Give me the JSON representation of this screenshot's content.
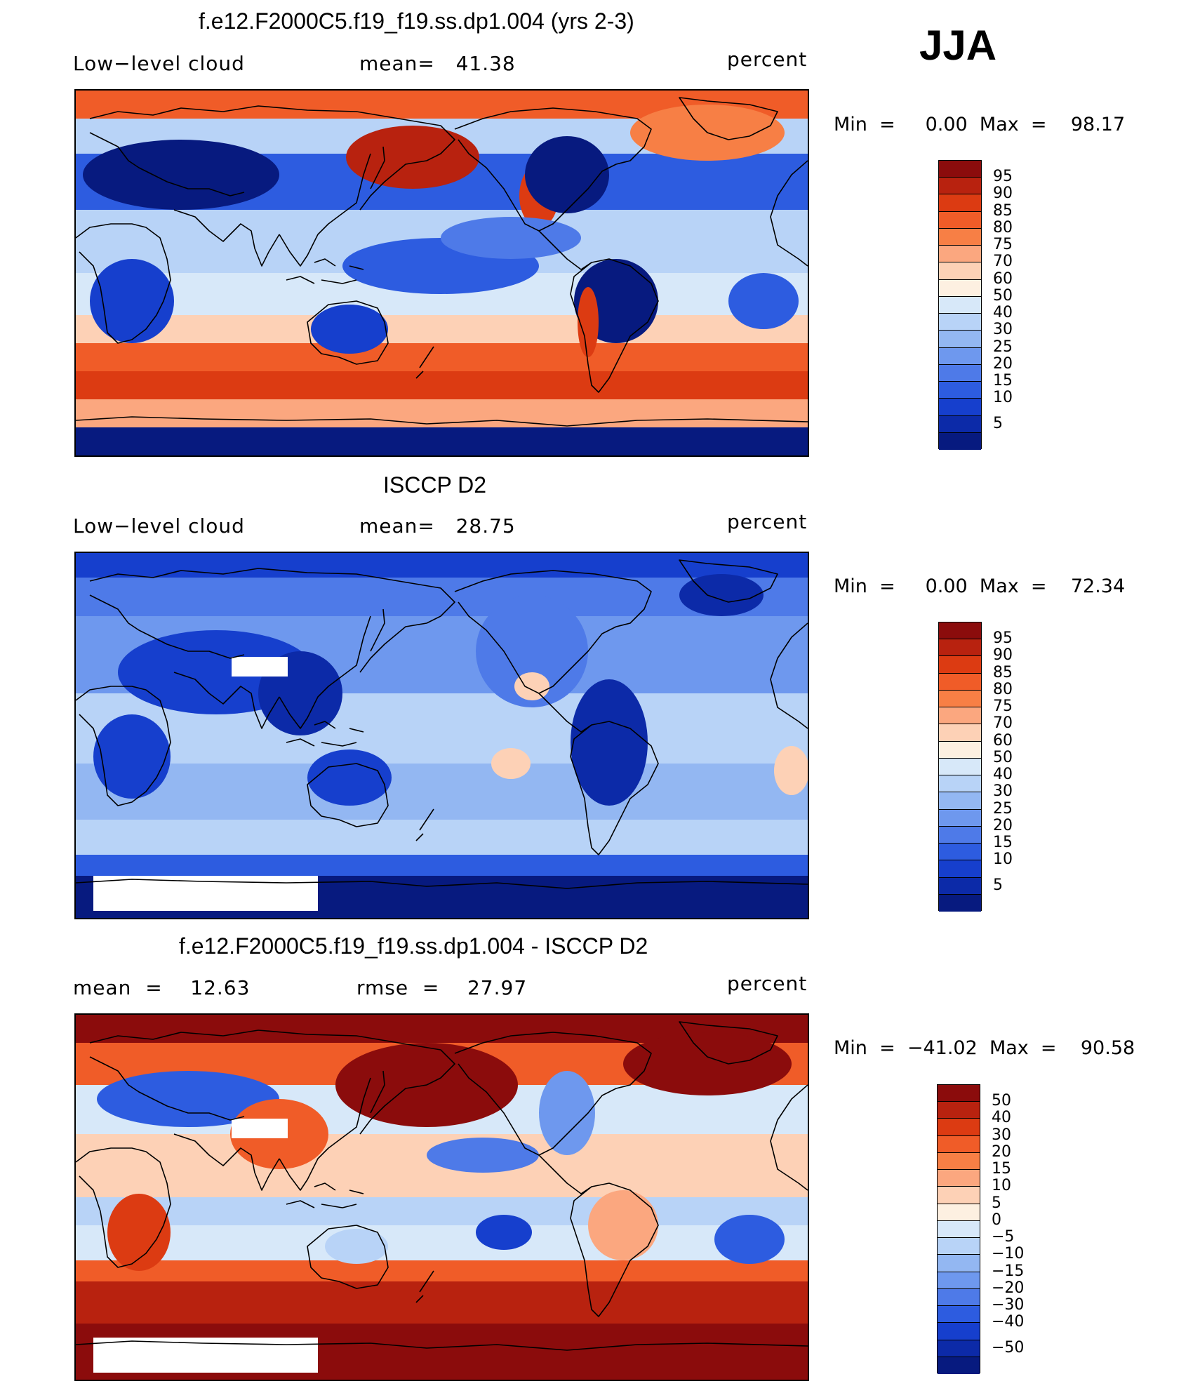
{
  "season": "JJA",
  "panels": [
    {
      "title": "f.e12.F2000C5.f19_f19.ss.dp1.004 (yrs 2-3)",
      "left_label": "Low−level cloud",
      "center_label": "mean=   41.38",
      "right_label": "percent",
      "minmax": "Min  =     0.00  Max  =    98.17",
      "colorbar": {
        "colors": [
          "#8b0c0c",
          "#b8220f",
          "#dc3b12",
          "#f05c28",
          "#f77f45",
          "#fba77f",
          "#fdd1b6",
          "#fdf0e1",
          "#d7e8f9",
          "#b8d3f7",
          "#93b7f2",
          "#6e98ee",
          "#4e7ae8",
          "#2d5ce0",
          "#163fcd",
          "#0c2aa8",
          "#071a7f"
        ],
        "labels": [
          "95",
          "90",
          "85",
          "80",
          "75",
          "70",
          "60",
          "50",
          "40",
          "30",
          "25",
          "20",
          "15",
          "10",
          "5"
        ]
      },
      "regions": "model"
    },
    {
      "title": "ISCCP D2",
      "left_label": "Low−level cloud",
      "center_label": "mean=   28.75",
      "right_label": "percent",
      "minmax": "Min  =     0.00  Max  =    72.34",
      "colorbar": {
        "colors": [
          "#8b0c0c",
          "#b8220f",
          "#dc3b12",
          "#f05c28",
          "#f77f45",
          "#fba77f",
          "#fdd1b6",
          "#fdf0e1",
          "#d7e8f9",
          "#b8d3f7",
          "#93b7f2",
          "#6e98ee",
          "#4e7ae8",
          "#2d5ce0",
          "#163fcd",
          "#0c2aa8",
          "#071a7f"
        ],
        "labels": [
          "95",
          "90",
          "85",
          "80",
          "75",
          "70",
          "60",
          "50",
          "40",
          "30",
          "25",
          "20",
          "15",
          "10",
          "5"
        ]
      },
      "regions": "obs"
    },
    {
      "title": "f.e12.F2000C5.f19_f19.ss.dp1.004 - ISCCP D2",
      "left_label": "mean  =    12.63",
      "center_label": "rmse  =    27.97",
      "right_label": "percent",
      "minmax": "Min  =  −41.02  Max  =    90.58",
      "colorbar": {
        "colors": [
          "#8b0c0c",
          "#b8220f",
          "#dc3b12",
          "#f05c28",
          "#f77f45",
          "#fba77f",
          "#fdd1b6",
          "#fdf0e1",
          "#d7e8f9",
          "#b8d3f7",
          "#93b7f2",
          "#6e98ee",
          "#4e7ae8",
          "#2d5ce0",
          "#163fcd",
          "#0c2aa8",
          "#071a7f"
        ],
        "labels": [
          "50",
          "40",
          "30",
          "20",
          "15",
          "10",
          "5",
          "0",
          "−5",
          "−10",
          "−15",
          "−20",
          "−30",
          "−40",
          "−50"
        ]
      },
      "regions": "diff"
    }
  ]
}
